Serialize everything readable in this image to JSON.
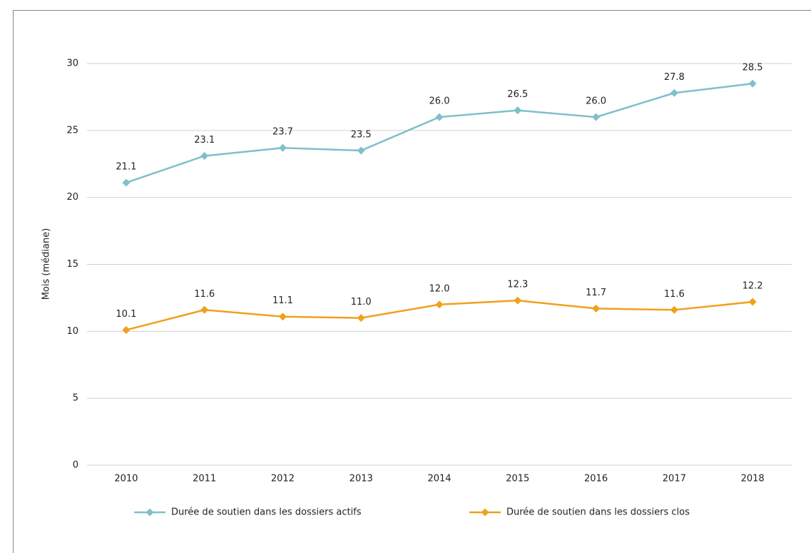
{
  "chart_data": {
    "type": "line",
    "y_label": "Mois (médiane)",
    "categories": [
      "2010",
      "2011",
      "2012",
      "2013",
      "2014",
      "2015",
      "2016",
      "2017",
      "2018"
    ],
    "series": [
      {
        "name": "Durée de soutien dans les dossiers actifs",
        "color": "#7fbfca",
        "values": [
          21.1,
          23.1,
          23.7,
          23.5,
          26.0,
          26.5,
          26.0,
          27.8,
          28.5
        ],
        "value_labels": [
          "21.1",
          "23.1",
          "23.7",
          "23.5",
          "26.0",
          "26.5",
          "26.0",
          "27.8",
          "28.5"
        ]
      },
      {
        "name": "Durée de soutien dans les dossiers clos",
        "color": "#f0a01e",
        "values": [
          10.1,
          11.6,
          11.1,
          11.0,
          12.0,
          12.3,
          11.7,
          11.6,
          12.2
        ],
        "value_labels": [
          "10.1",
          "11.6",
          "11.1",
          "11.0",
          "12.0",
          "12.3",
          "11.7",
          "11.6",
          "12.2"
        ]
      }
    ],
    "ylim": [
      0,
      30
    ],
    "yticks": [
      0,
      5,
      10,
      15,
      20,
      25,
      30
    ],
    "grid": true,
    "legend": "bottom"
  }
}
